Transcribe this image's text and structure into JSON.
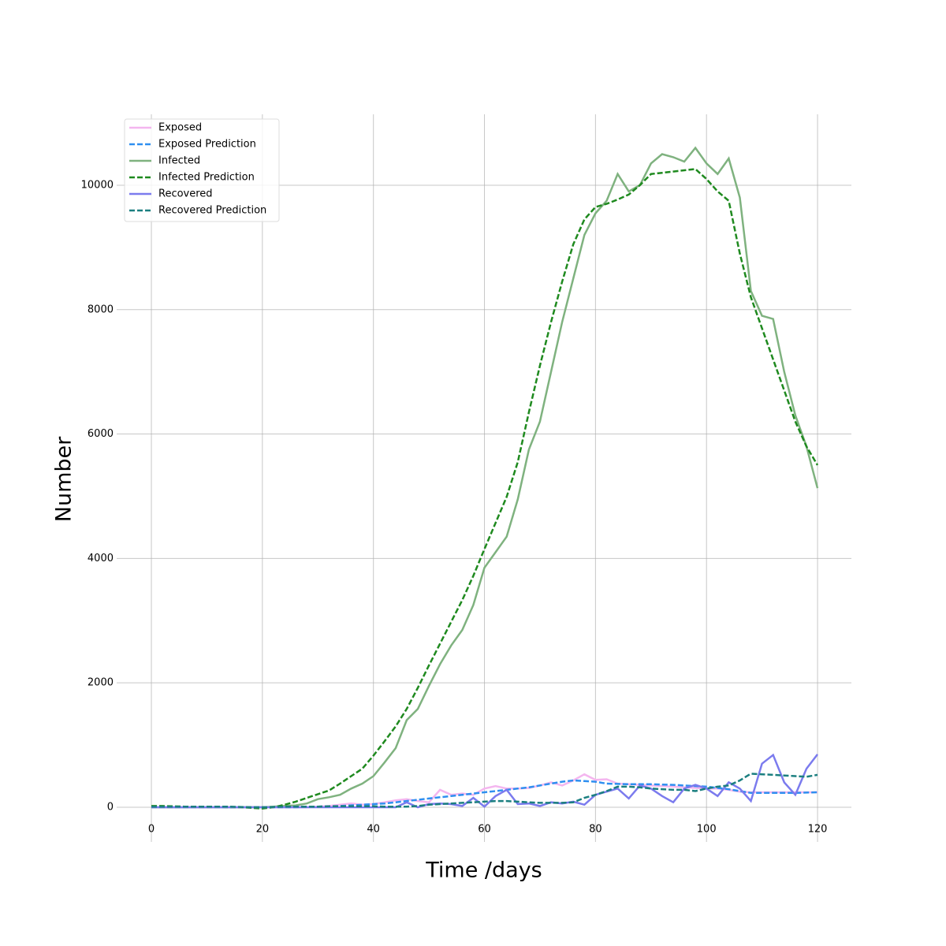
{
  "chart_data": {
    "type": "line",
    "xlabel": "Time /days",
    "ylabel": "Number",
    "x": [
      0,
      2,
      4,
      6,
      8,
      10,
      12,
      14,
      16,
      18,
      20,
      22,
      24,
      26,
      28,
      30,
      32,
      34,
      36,
      38,
      40,
      42,
      44,
      46,
      48,
      50,
      52,
      54,
      56,
      58,
      60,
      62,
      64,
      66,
      68,
      70,
      72,
      74,
      76,
      78,
      80,
      82,
      84,
      86,
      88,
      90,
      92,
      94,
      96,
      98,
      100,
      102,
      104,
      106,
      108,
      110,
      112,
      114,
      116,
      118,
      120
    ],
    "series": [
      {
        "name": "Exposed",
        "color": "#f4b6ef",
        "style": "solid",
        "values": [
          0,
          0,
          0,
          0,
          0,
          0,
          0,
          0,
          0,
          0,
          0,
          0,
          0,
          0,
          0,
          10,
          20,
          40,
          60,
          40,
          50,
          80,
          110,
          130,
          100,
          80,
          280,
          200,
          220,
          200,
          300,
          340,
          300,
          300,
          310,
          350,
          400,
          350,
          430,
          530,
          440,
          450,
          380,
          370,
          360,
          350,
          340,
          330,
          320,
          310,
          300,
          300,
          280,
          250,
          240,
          240,
          240,
          240,
          240,
          240,
          240
        ]
      },
      {
        "name": "Exposed Prediction",
        "color": "#2f8ff0",
        "style": "dashed",
        "values": [
          0,
          0,
          0,
          0,
          0,
          0,
          0,
          0,
          0,
          0,
          0,
          0,
          0,
          0,
          5,
          10,
          15,
          20,
          30,
          40,
          50,
          60,
          80,
          100,
          120,
          140,
          160,
          180,
          200,
          220,
          240,
          260,
          280,
          300,
          320,
          350,
          380,
          410,
          430,
          420,
          410,
          380,
          375,
          370,
          370,
          370,
          365,
          360,
          350,
          340,
          330,
          310,
          290,
          260,
          230,
          230,
          230,
          230,
          230,
          235,
          240
        ]
      },
      {
        "name": "Infected",
        "color": "#7fb27f",
        "style": "solid",
        "values": [
          0,
          0,
          0,
          0,
          0,
          0,
          0,
          0,
          0,
          0,
          0,
          10,
          20,
          30,
          60,
          130,
          160,
          200,
          300,
          380,
          500,
          720,
          950,
          1400,
          1580,
          1950,
          2300,
          2600,
          2850,
          3250,
          3850,
          4100,
          4350,
          4950,
          5750,
          6200,
          7000,
          7800,
          8500,
          9200,
          9550,
          9750,
          10180,
          9900,
          10000,
          10350,
          10500,
          10450,
          10380,
          10600,
          10350,
          10180,
          10430,
          9800,
          8300,
          7900,
          7850,
          7000,
          6300,
          5800,
          5130
        ]
      },
      {
        "name": "Infected Prediction",
        "color": "#1f8a1f",
        "style": "dashed",
        "values": [
          20,
          20,
          15,
          10,
          10,
          5,
          5,
          0,
          0,
          -10,
          -20,
          0,
          40,
          90,
          150,
          210,
          270,
          380,
          500,
          620,
          830,
          1060,
          1300,
          1580,
          1920,
          2280,
          2630,
          2980,
          3330,
          3720,
          4150,
          4570,
          4990,
          5550,
          6350,
          7100,
          7800,
          8450,
          9050,
          9450,
          9650,
          9700,
          9770,
          9850,
          10000,
          10180,
          10200,
          10220,
          10240,
          10260,
          10100,
          9900,
          9750,
          8900,
          8200,
          7700,
          7200,
          6700,
          6200,
          5800,
          5500
        ]
      },
      {
        "name": "Recovered",
        "color": "#7b7bee",
        "style": "solid",
        "values": [
          0,
          0,
          0,
          0,
          0,
          0,
          0,
          0,
          0,
          0,
          0,
          0,
          0,
          0,
          0,
          0,
          0,
          0,
          0,
          0,
          0,
          0,
          0,
          80,
          0,
          50,
          60,
          50,
          20,
          150,
          10,
          180,
          280,
          50,
          60,
          20,
          80,
          60,
          90,
          40,
          200,
          250,
          300,
          140,
          350,
          300,
          180,
          80,
          300,
          360,
          300,
          180,
          400,
          300,
          100,
          700,
          840,
          400,
          200,
          620,
          850
        ]
      },
      {
        "name": "Recovered Prediction",
        "color": "#1b7f80",
        "style": "dashed",
        "values": [
          10,
          10,
          10,
          10,
          10,
          10,
          10,
          10,
          5,
          0,
          0,
          5,
          10,
          10,
          10,
          10,
          15,
          15,
          15,
          15,
          15,
          10,
          10,
          10,
          20,
          40,
          50,
          60,
          70,
          80,
          90,
          100,
          100,
          90,
          80,
          70,
          70,
          70,
          80,
          150,
          200,
          260,
          330,
          330,
          320,
          300,
          290,
          280,
          280,
          260,
          300,
          330,
          350,
          430,
          540,
          530,
          520,
          510,
          500,
          490,
          520
        ]
      }
    ],
    "xlim": [
      -6.25,
      126.1
    ],
    "ylim": [
      -558,
      11140
    ],
    "xticks": [
      0,
      20,
      40,
      60,
      80,
      100,
      120
    ],
    "yticks": [
      0,
      2000,
      4000,
      6000,
      8000,
      10000
    ],
    "grid": true,
    "legend": "upper-left"
  }
}
